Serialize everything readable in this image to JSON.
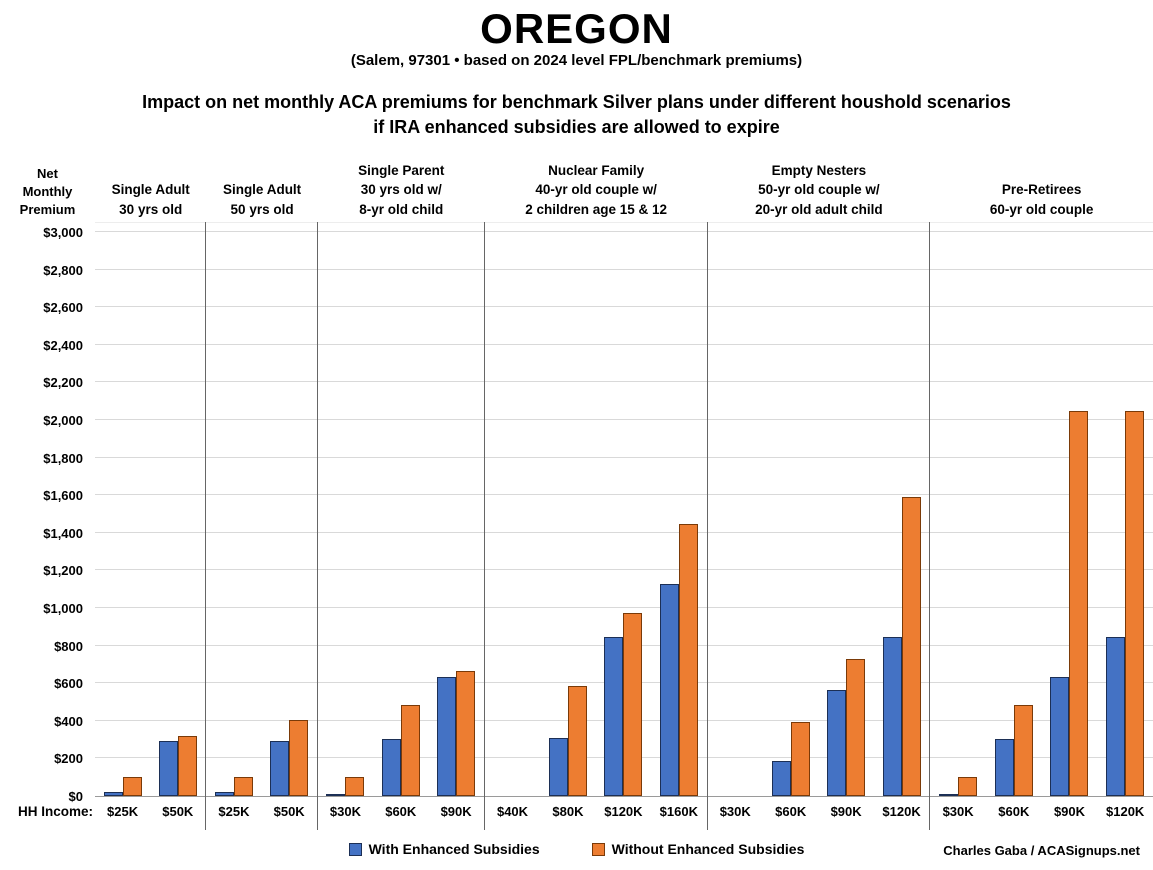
{
  "header": {
    "title": "OREGON",
    "subtitle": "(Salem, 97301 • based on 2024 level FPL/benchmark premiums)",
    "description_line1": "Impact on net monthly ACA premiums for benchmark Silver plans under different houshold scenarios",
    "description_line2": "if IRA enhanced subsidies are allowed to expire"
  },
  "chart_data": {
    "type": "bar",
    "title": "Impact on net monthly ACA premiums for benchmark Silver plans under different houshold scenarios if IRA enhanced subsidies are allowed to expire",
    "ylabel": "Net Monthly Premium",
    "xlabel": "HH Income:",
    "ylim": [
      0,
      3000
    ],
    "grid": true,
    "legend_position": "bottom-center",
    "y_axis": {
      "label_lines": [
        "Net",
        "Monthly",
        "Premium"
      ],
      "tick_values": [
        0,
        200,
        400,
        600,
        800,
        1000,
        1200,
        1400,
        1600,
        1800,
        2000,
        2200,
        2400,
        2600,
        2800,
        3000
      ],
      "tick_labels": [
        "$0",
        "$200",
        "$400",
        "$600",
        "$800",
        "$1,000",
        "$1,200",
        "$1,400",
        "$1,600",
        "$1,800",
        "$2,000",
        "$2,200",
        "$2,400",
        "$2,600",
        "$2,800",
        "$3,000"
      ]
    },
    "hh_income_label": "HH Income:",
    "legend": [
      {
        "key": "with",
        "label": "With Enhanced Subsidies",
        "color": "#4472C4",
        "border": "#1c2f55"
      },
      {
        "key": "without",
        "label": "Without Enhanced Subsidies",
        "color": "#ED7D31",
        "border": "#7a3a08"
      }
    ],
    "groups": [
      {
        "label_lines": [
          "Single Adult",
          "30 yrs old"
        ],
        "pairs": [
          {
            "income": "$25K",
            "with": 20,
            "without": 100
          },
          {
            "income": "$50K",
            "with": 295,
            "without": 320
          }
        ]
      },
      {
        "label_lines": [
          "Single Adult",
          "50 yrs old"
        ],
        "pairs": [
          {
            "income": "$25K",
            "with": 20,
            "without": 100
          },
          {
            "income": "$50K",
            "with": 295,
            "without": 405
          }
        ]
      },
      {
        "label_lines": [
          "Single Parent",
          "30 yrs old w/",
          "8-yr old child"
        ],
        "pairs": [
          {
            "income": "$30K",
            "with": 5,
            "without": 100
          },
          {
            "income": "$60K",
            "with": 305,
            "without": 485
          },
          {
            "income": "$90K",
            "with": 635,
            "without": 665
          }
        ]
      },
      {
        "label_lines": [
          "Nuclear Family",
          "40-yr old couple w/",
          "2 children age 15 & 12"
        ],
        "pairs": [
          {
            "income": "$40K",
            "with": 0,
            "without": 0
          },
          {
            "income": "$80K",
            "with": 310,
            "without": 585
          },
          {
            "income": "$120K",
            "with": 845,
            "without": 975
          },
          {
            "income": "$160K",
            "with": 1130,
            "without": 1445
          }
        ]
      },
      {
        "label_lines": [
          "Empty Nesters",
          "50-yr old couple w/",
          "20-yr old adult child"
        ],
        "pairs": [
          {
            "income": "$30K",
            "with": 0,
            "without": 0
          },
          {
            "income": "$60K",
            "with": 185,
            "without": 395
          },
          {
            "income": "$90K",
            "with": 565,
            "without": 730
          },
          {
            "income": "$120K",
            "with": 845,
            "without": 1590
          }
        ]
      },
      {
        "label_lines": [
          "Pre-Retirees",
          "60-yr old couple"
        ],
        "pairs": [
          {
            "income": "$30K",
            "with": 5,
            "without": 100
          },
          {
            "income": "$60K",
            "with": 305,
            "without": 485
          },
          {
            "income": "$90K",
            "with": 635,
            "without": 2050
          },
          {
            "income": "$120K",
            "with": 845,
            "without": 2050
          }
        ]
      }
    ]
  },
  "footer": {
    "credit": "Charles Gaba / ACASignups.net"
  }
}
